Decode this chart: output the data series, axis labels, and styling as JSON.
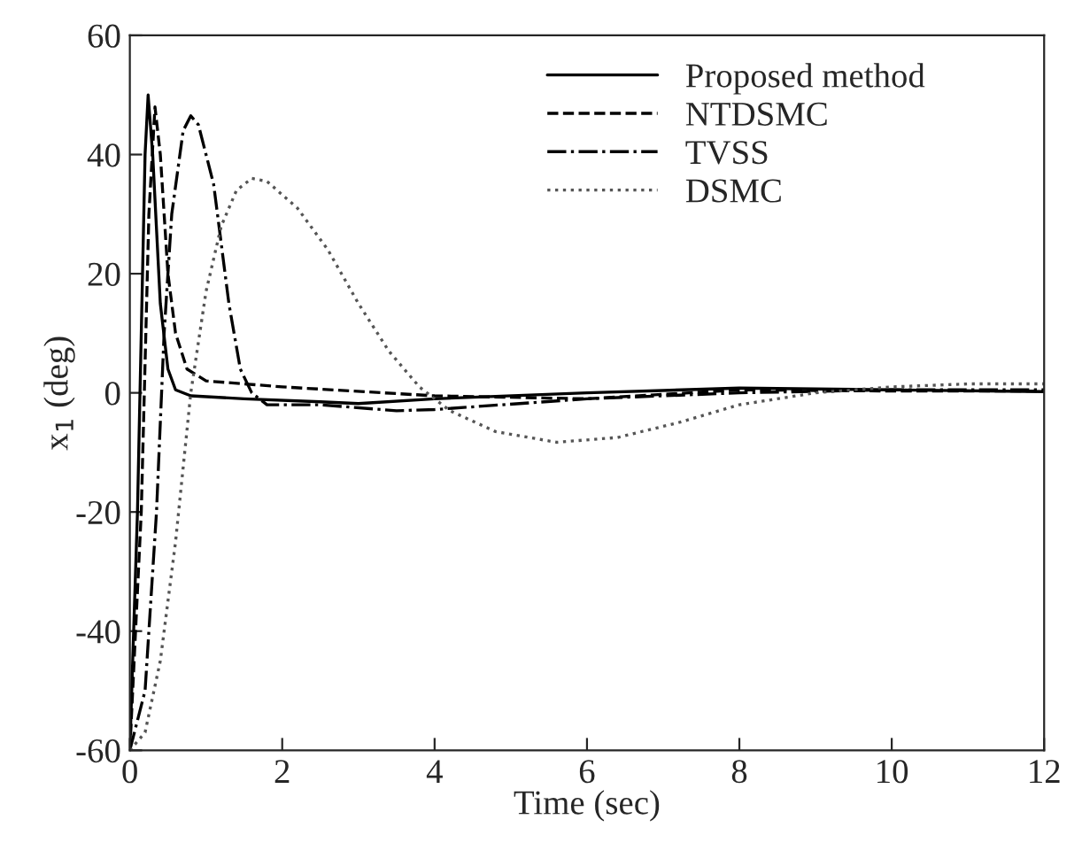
{
  "chart_data": {
    "type": "line",
    "xlabel": "Time (sec)",
    "ylabel": "x$_{1}$ (deg)",
    "xlim": [
      0,
      12
    ],
    "ylim": [
      -60,
      60
    ],
    "xticks": [
      0,
      2,
      4,
      6,
      8,
      10,
      12
    ],
    "yticks": [
      -60,
      -40,
      -20,
      0,
      20,
      40,
      60
    ],
    "grid": false,
    "legend": "top right",
    "marker": "none",
    "series": [
      {
        "name": "Proposed method",
        "color": "#000000",
        "line_style": "solid",
        "x": [
          0,
          0.1,
          0.2,
          0.24,
          0.3,
          0.4,
          0.5,
          0.6,
          0.8,
          1.5,
          2.5,
          3,
          4,
          6,
          8,
          10,
          12
        ],
        "values": [
          -60,
          -20,
          40,
          50,
          40,
          15,
          4,
          0.5,
          -0.5,
          -1,
          -1.5,
          -1.8,
          -1,
          0,
          0.8,
          0.5,
          0.2
        ]
      },
      {
        "name": "NTDSMC",
        "color": "#000000",
        "line_style": "dashed",
        "x": [
          0,
          0.15,
          0.25,
          0.33,
          0.4,
          0.5,
          0.6,
          0.75,
          1,
          2,
          4,
          6,
          8,
          10,
          12
        ],
        "values": [
          -60,
          -20,
          30,
          48,
          40,
          20,
          10,
          4,
          2,
          1,
          -0.5,
          -1,
          0.5,
          0.3,
          0.3
        ]
      },
      {
        "name": "TVSS",
        "color": "#000000",
        "line_style": "dashdot",
        "x": [
          0,
          0.2,
          0.35,
          0.45,
          0.55,
          0.7,
          0.8,
          0.9,
          1.1,
          1.3,
          1.45,
          1.6,
          1.8,
          2.5,
          3.5,
          4,
          6,
          8,
          10,
          12
        ],
        "values": [
          -60,
          -50,
          -20,
          10,
          30,
          44,
          46.5,
          45,
          35,
          15,
          4,
          0,
          -2,
          -2,
          -3,
          -2.8,
          -1,
          0,
          0.5,
          0.5
        ]
      },
      {
        "name": "DSMC",
        "color": "#555555",
        "line_style": "dotted",
        "x": [
          0,
          0.2,
          0.4,
          0.6,
          0.8,
          1,
          1.2,
          1.4,
          1.6,
          1.8,
          2.2,
          2.6,
          3,
          3.4,
          3.8,
          4.2,
          4.8,
          5.6,
          6.4,
          7.2,
          8,
          9,
          10,
          11,
          12
        ],
        "values": [
          -60,
          -57,
          -45,
          -25,
          0,
          17,
          28,
          34,
          36,
          35.5,
          31,
          24,
          15,
          7,
          1,
          -3,
          -6.5,
          -8.3,
          -7.5,
          -5,
          -2,
          0,
          1,
          1.5,
          1.5
        ]
      }
    ]
  }
}
